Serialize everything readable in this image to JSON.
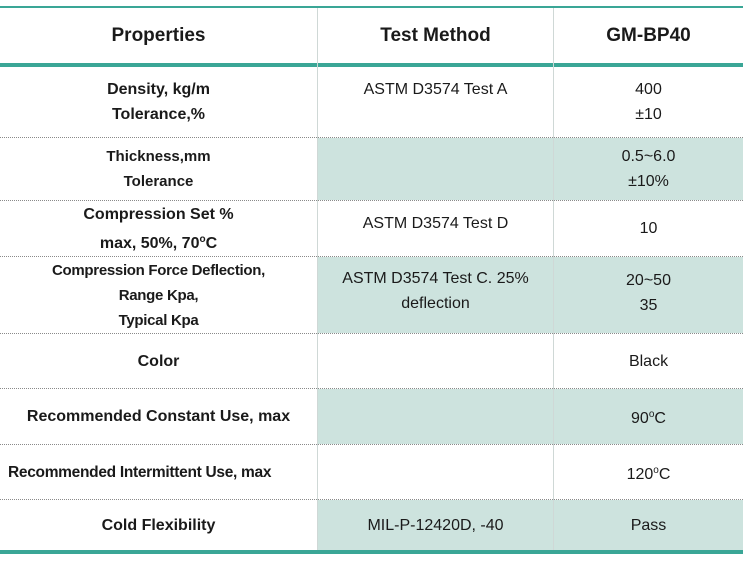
{
  "header": {
    "col1": "Properties",
    "col2": "Test Method",
    "col3": "GM-BP40"
  },
  "rows": [
    {
      "property": [
        "Density, kg/m",
        "Tolerance,%"
      ],
      "method": [
        "ASTM D3574 Test A"
      ],
      "value": [
        "400",
        "±10"
      ]
    },
    {
      "property": [
        "Thickness,mm",
        "Tolerance"
      ],
      "method": [],
      "value": [
        "0.5~6.0",
        "±10%"
      ]
    },
    {
      "property": [
        "Compression Set %",
        "max, 50%, 70"
      ],
      "property_unit": "C",
      "method": [
        "ASTM D3574 Test D"
      ],
      "value": [
        "10"
      ]
    },
    {
      "property": [
        "Compression Force Deflection,",
        "Range Kpa,",
        "Typical Kpa"
      ],
      "method": [
        "ASTM D3574 Test C. 25%",
        "deflection"
      ],
      "value": [
        "20~50",
        "35"
      ]
    },
    {
      "property": [
        "Color"
      ],
      "method": [],
      "value": [
        "Black"
      ]
    },
    {
      "property": [
        "Recommended Constant Use, max"
      ],
      "method": [],
      "value_num": "90",
      "value_unit": "C"
    },
    {
      "property": [
        "Recommended Intermittent Use, max"
      ],
      "method": [],
      "value_num": "120",
      "value_unit": "C"
    },
    {
      "property": [
        "Cold Flexibility"
      ],
      "method": [
        "MIL-P-12420D, -40"
      ],
      "value": [
        "Pass"
      ]
    }
  ],
  "degree_symbol": "o",
  "colors": {
    "accent": "#3aa696",
    "shade": "#cde3de"
  }
}
